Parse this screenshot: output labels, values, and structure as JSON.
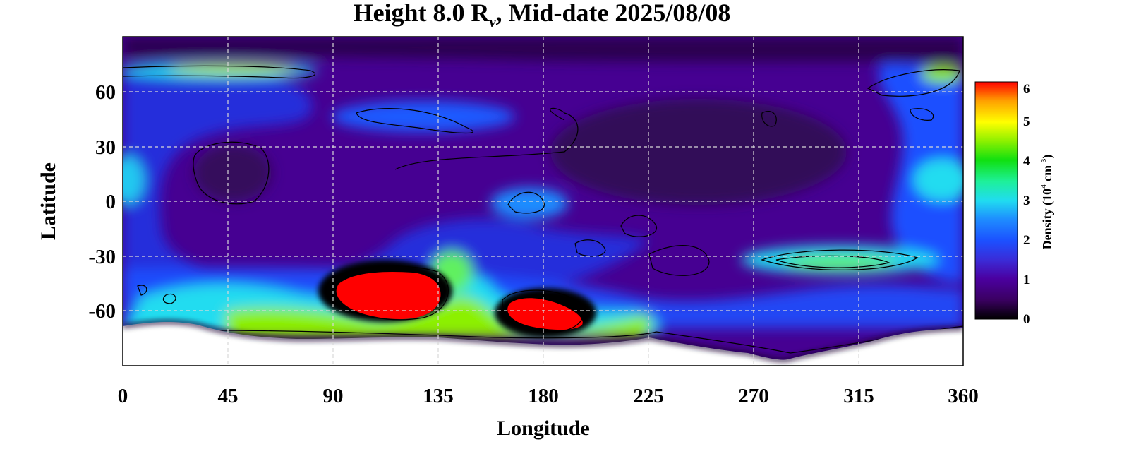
{
  "chart_data": {
    "type": "heatmap",
    "title_prefix": "Height 8.0 R",
    "title_subscript": "v",
    "title_suffix": ", Mid-date 2025/08/08",
    "xlabel": "Longitude",
    "ylabel": "Latitude",
    "xlim": [
      0,
      360
    ],
    "ylim": [
      -90,
      90
    ],
    "x_ticks": [
      "0",
      "45",
      "90",
      "135",
      "180",
      "225",
      "270",
      "315",
      "360"
    ],
    "y_ticks": [
      "60",
      "30",
      "0",
      "-30",
      "-60"
    ],
    "grid": true,
    "colorbar": {
      "label_prefix": "Density (10",
      "label_exponent": "4",
      "label_unit": " cm",
      "label_unit_exponent": "-3",
      "label_suffix": ")",
      "range": [
        0,
        6
      ],
      "ticks": [
        "0",
        "1",
        "2",
        "3",
        "4",
        "5",
        "6"
      ],
      "colormap": [
        "#000000",
        "#3a0060",
        "#4b00a0",
        "#3a2cd8",
        "#1c50ff",
        "#1e8cff",
        "#20dcf0",
        "#1ef09a",
        "#10e010",
        "#8cf000",
        "#ffff00",
        "#ffa000",
        "#ff0000"
      ]
    },
    "features": [
      {
        "lon": 112,
        "lat": -47,
        "density": 6.2
      },
      {
        "lon": 178,
        "lat": -60,
        "density": 6.2
      },
      {
        "lon": 145,
        "lat": -60,
        "density": 4.8
      },
      {
        "lon": 80,
        "lat": -60,
        "density": 4.0
      },
      {
        "lon": 200,
        "lat": -64,
        "density": 4.2
      },
      {
        "lon": 305,
        "lat": -32,
        "density": 3.8
      },
      {
        "lon": 75,
        "lat": 72,
        "density": 4.0
      },
      {
        "lon": 345,
        "lat": 70,
        "density": 3.8
      },
      {
        "lon": 175,
        "lat": 0,
        "density": 3.0
      },
      {
        "lon": 350,
        "lat": 15,
        "density": 2.8
      },
      {
        "lon": 4,
        "lat": 10,
        "density": 2.7
      },
      {
        "lon": 130,
        "lat": 45,
        "density": 2.6
      },
      {
        "lon": 30,
        "lat": -55,
        "density": 3.0
      },
      {
        "lon": 240,
        "lat": -58,
        "density": 2.5
      },
      {
        "lon": 245,
        "lat": 35,
        "density": 0.4
      },
      {
        "lon": 50,
        "lat": 15,
        "density": 0.6
      },
      {
        "lon": 110,
        "lat": -38,
        "density": 0.0
      },
      {
        "lon": 180,
        "lat": -52,
        "density": 0.0
      }
    ]
  }
}
